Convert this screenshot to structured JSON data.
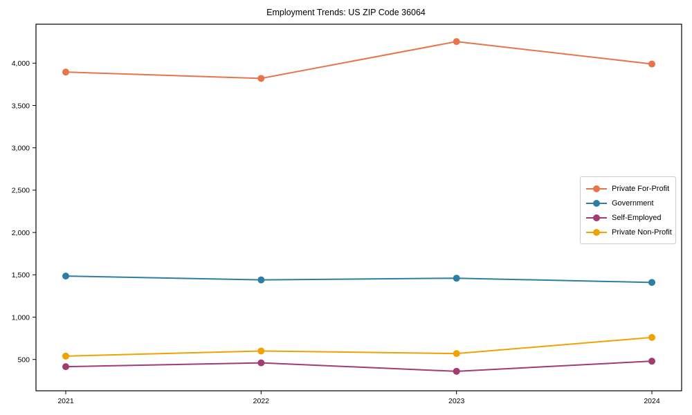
{
  "figure": {
    "background": "#ffffff",
    "axis_color": "#000000",
    "legend_border_color": "#cccccc"
  },
  "chart_data": {
    "type": "line",
    "title": "Employment Trends: US ZIP Code 36064",
    "x": [
      2021,
      2022,
      2023,
      2024
    ],
    "x_tick_labels": [
      "2021",
      "2022",
      "2023",
      "2024"
    ],
    "series": [
      {
        "name": "Private For-Profit",
        "color": "#E8744B",
        "values": [
          3895,
          3820,
          4255,
          3990
        ]
      },
      {
        "name": "Government",
        "color": "#2E7EA3",
        "values": [
          1485,
          1440,
          1460,
          1410
        ]
      },
      {
        "name": "Self-Employed",
        "color": "#A23B72",
        "values": [
          415,
          460,
          360,
          480
        ]
      },
      {
        "name": "Private Non-Profit",
        "color": "#F0A202",
        "values": [
          540,
          600,
          570,
          760
        ]
      }
    ],
    "yticks": [
      500,
      1000,
      1500,
      2000,
      2500,
      3000,
      3500,
      4000
    ],
    "ytick_labels": [
      "500",
      "1,000",
      "1,500",
      "2,000",
      "2,500",
      "3,000",
      "3,500",
      "4,000"
    ],
    "ylim": [
      130,
      4460
    ],
    "xlabel": "",
    "ylabel": "",
    "grid": false,
    "legend_position": "center-right",
    "marker": "circle"
  }
}
